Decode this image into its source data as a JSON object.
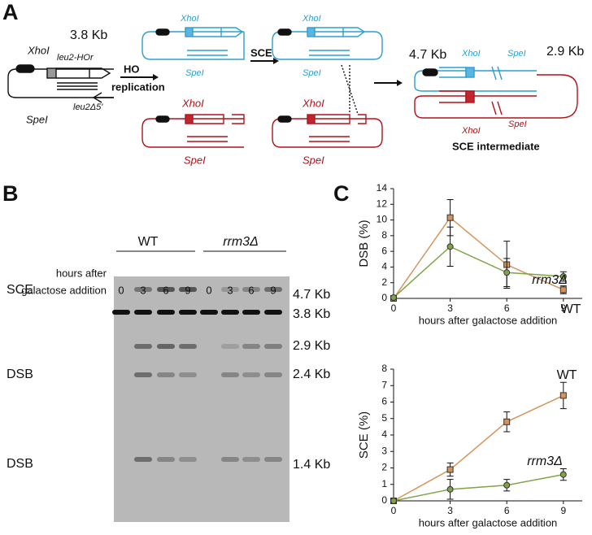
{
  "panel_labels": [
    "A",
    "B",
    "C"
  ],
  "diagram": {
    "labels": [
      "3.8 Kb",
      "XhoI",
      "leu2-HOr",
      "leu2Δ5'",
      "SpeI",
      "HO",
      "replication",
      "XhoI",
      "SpeI",
      "XhoI",
      "SpeI",
      "SCE",
      "XhoI",
      "SpeI",
      "XhoI",
      "SpeI",
      "4.7 Kb",
      "XhoI",
      "SpeI",
      "2.9 Kb",
      "XhoI",
      "SpeI",
      "SCE intermediate"
    ]
  },
  "gel": {
    "header": [
      "hours after",
      "galactose addition"
    ],
    "groups": [
      "WT",
      "rrm3Δ"
    ],
    "lanes": [
      "0",
      "3",
      "6",
      "9",
      "0",
      "3",
      "6",
      "9"
    ],
    "band_names": [
      "SCE",
      "DSB",
      "DSB"
    ],
    "band_sizes": [
      "4.7 Kb",
      "3.8 Kb",
      "2.9 Kb",
      "2.4 Kb",
      "1.4 Kb"
    ]
  },
  "chart_data": [
    {
      "type": "line",
      "ylabel": "DSB (%)",
      "xlabel": "hours after galactose addition",
      "x": [
        0,
        3,
        6,
        9
      ],
      "xlim": [
        0,
        10
      ],
      "xticks": [
        0,
        3,
        6,
        9
      ],
      "ylim": [
        0,
        14
      ],
      "yticks": [
        0,
        2,
        4,
        6,
        8,
        10,
        12,
        14
      ],
      "series": [
        {
          "name": "WT",
          "color": "#d4935a",
          "marker": "square",
          "values": [
            0,
            10.3,
            4.3,
            1.1
          ],
          "errors": [
            0,
            2.3,
            3.0,
            0.5
          ]
        },
        {
          "name": "rrm3Δ",
          "color": "#7ea446",
          "marker": "circle",
          "values": [
            0.1,
            6.6,
            3.3,
            2.8
          ],
          "errors": [
            0,
            2.5,
            1.8,
            0.6
          ]
        }
      ]
    },
    {
      "type": "line",
      "ylabel": "SCE (%)",
      "xlabel": "hours after galactose addition",
      "x": [
        0,
        3,
        6,
        9
      ],
      "xlim": [
        0,
        10
      ],
      "xticks": [
        0,
        3,
        6,
        9
      ],
      "ylim": [
        0,
        8
      ],
      "yticks": [
        0,
        1,
        2,
        3,
        4,
        5,
        6,
        7,
        8
      ],
      "series": [
        {
          "name": "WT",
          "color": "#d4935a",
          "marker": "square",
          "values": [
            0,
            1.9,
            4.8,
            6.4
          ],
          "errors": [
            0,
            0.4,
            0.6,
            0.8
          ]
        },
        {
          "name": "rrm3Δ",
          "color": "#7ea446",
          "marker": "circle",
          "values": [
            0,
            0.7,
            0.95,
            1.6
          ],
          "errors": [
            0,
            0.6,
            0.35,
            0.35
          ]
        }
      ]
    }
  ]
}
